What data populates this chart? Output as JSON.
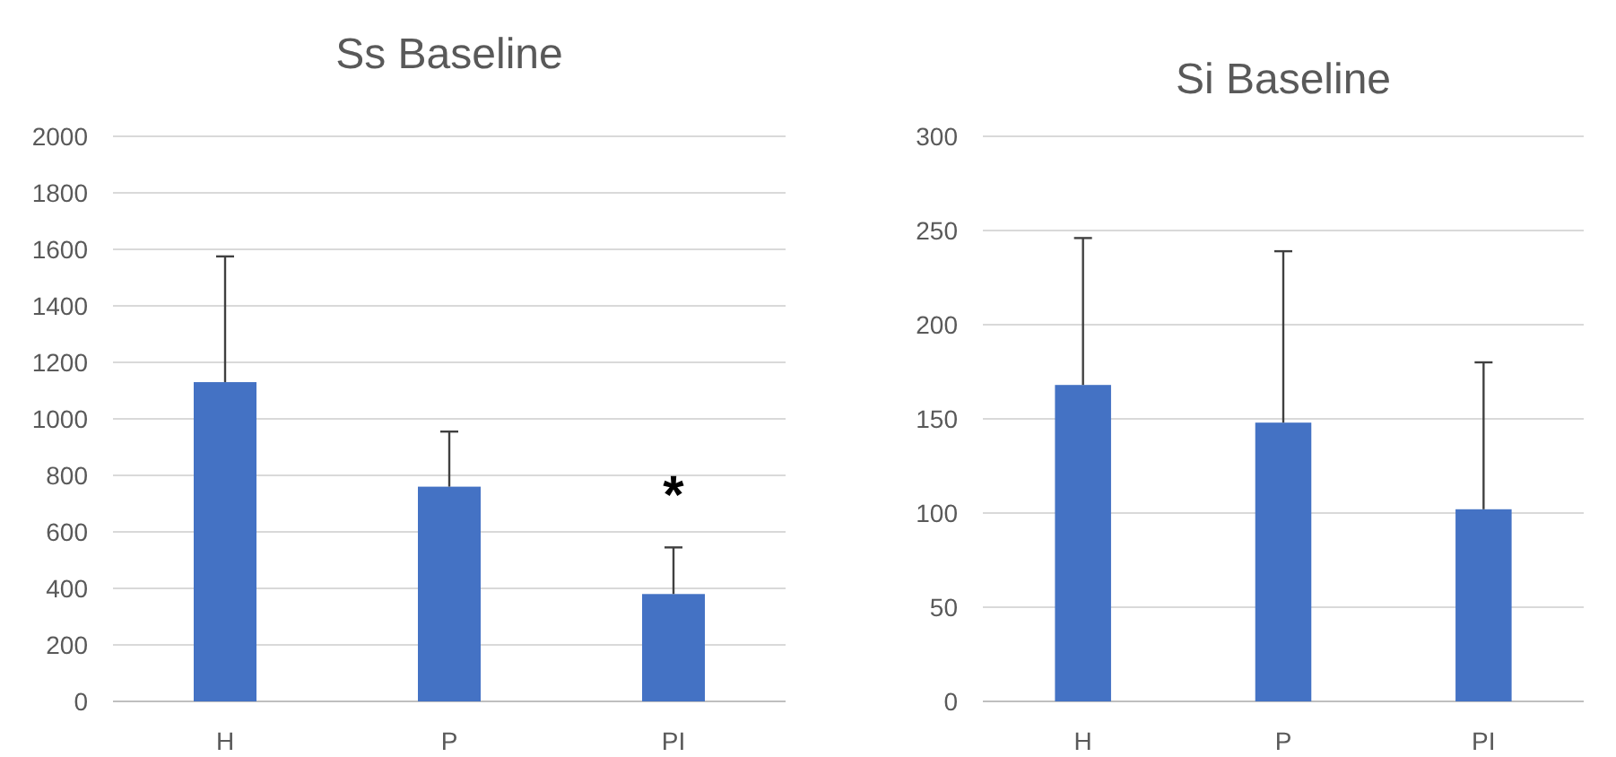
{
  "chart_data": [
    {
      "type": "bar",
      "title": "Ss Baseline",
      "categories": [
        "H",
        "P",
        "PI"
      ],
      "values": [
        1130,
        760,
        380
      ],
      "color": "#4472c4",
      "errors": [
        [
          1130,
          1575
        ],
        [
          760,
          955
        ],
        [
          380,
          545
        ]
      ],
      "ylim": [
        0,
        2000
      ],
      "yticks": [
        0,
        200,
        400,
        600,
        800,
        1000,
        1200,
        1400,
        1600,
        1800,
        2000
      ],
      "grid": "y",
      "annotations": [
        "*"
      ]
    },
    {
      "type": "bar",
      "title": "Si Baseline",
      "categories": [
        "H",
        "P",
        "PI"
      ],
      "values": [
        168,
        148,
        102
      ],
      "color": "#4472c4",
      "errors": [
        [
          168,
          246
        ],
        [
          148,
          239
        ],
        [
          102,
          180
        ]
      ],
      "ylim": [
        0,
        300
      ],
      "yticks": [
        0,
        50,
        100,
        150,
        200,
        250,
        300
      ],
      "grid": "y"
    }
  ]
}
